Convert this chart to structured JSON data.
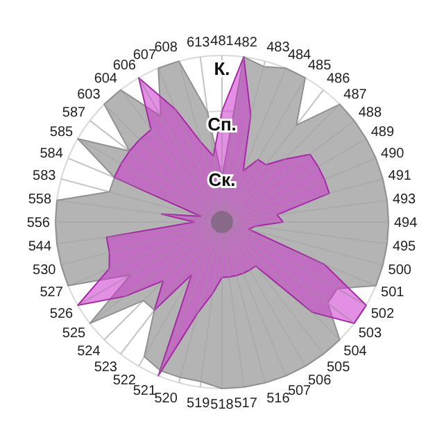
{
  "chart_data": {
    "type": "radar",
    "categories": [
      "481",
      "482",
      "483",
      "484",
      "485",
      "486",
      "487",
      "488",
      "489",
      "490",
      "491",
      "493",
      "494",
      "495",
      "500",
      "501",
      "502",
      "503",
      "504",
      "505",
      "506",
      "507",
      "516",
      "517",
      "518",
      "519",
      "520",
      "521",
      "522",
      "523",
      "524",
      "525",
      "526",
      "527",
      "530",
      "544",
      "556",
      "558",
      "583",
      "584",
      "585",
      "587",
      "603",
      "604",
      "606",
      "607",
      "608",
      "613"
    ],
    "ylim": [
      0,
      3
    ],
    "yticks": [
      {
        "value": 1,
        "label": "Ск."
      },
      {
        "value": 2,
        "label": "Сп."
      },
      {
        "value": 3,
        "label": "К."
      }
    ],
    "grid": true,
    "series": [
      {
        "color": "#b4b4b4",
        "values": [
          0.8,
          3,
          2.9,
          3,
          3,
          2.2,
          3,
          3,
          3,
          3,
          3,
          3,
          3,
          3,
          3,
          3,
          2.4,
          2.4,
          3,
          3,
          3,
          3,
          3,
          3,
          3,
          2.9,
          2.9,
          2.9,
          2.8,
          2,
          2,
          3,
          1.9,
          3,
          3,
          3,
          3,
          3,
          2.1,
          2.1,
          3,
          2.1,
          3,
          3,
          2.2,
          3,
          3,
          2
        ]
      },
      {
        "color": "#cc33cc",
        "values": [
          2,
          3,
          2,
          1,
          1.3,
          1.3,
          1.6,
          2,
          2,
          2,
          2,
          1,
          1.1,
          0.6,
          0.5,
          2,
          3,
          3,
          2.3,
          1,
          1,
          1,
          1,
          1,
          1,
          1.3,
          1.7,
          3,
          1.1,
          2,
          1.5,
          2.2,
          3,
          2.2,
          2.1,
          2.1,
          0.5,
          1.1,
          0.4,
          2.1,
          2.1,
          2.1,
          2.1,
          2.1,
          3,
          2.2,
          1.5,
          1.2
        ]
      }
    ]
  }
}
